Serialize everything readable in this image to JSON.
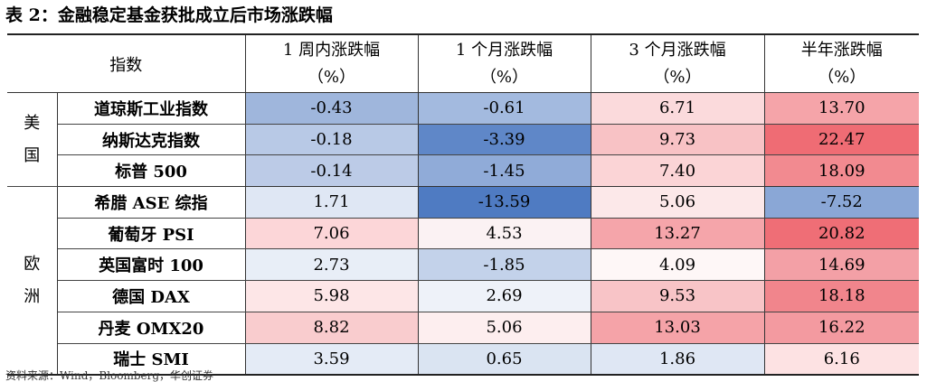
{
  "title": "表 2：金融稳定基金获批成立后市场涨跌幅",
  "header": {
    "index_label": "指数",
    "columns": [
      {
        "line1": "1 周内涨跌幅",
        "line2": "（%）"
      },
      {
        "line1": "1 个月涨跌幅",
        "line2": "（%）"
      },
      {
        "line1": "3 个月涨跌幅",
        "line2": "（%）"
      },
      {
        "line1": "半年涨跌幅",
        "line2": "（%）"
      }
    ]
  },
  "groups": [
    {
      "region": "美国",
      "rows": [
        {
          "name": "道琼斯工业指数",
          "values": [
            "-0.43",
            "-0.61",
            "6.71",
            "13.70"
          ],
          "colors": [
            "#9fb6dc",
            "#a3badf",
            "#fbdadc",
            "#f5a4a9"
          ]
        },
        {
          "name": "纳斯达克指数",
          "values": [
            "-0.18",
            "-3.39",
            "9.73",
            "22.47"
          ],
          "colors": [
            "#b8c9e6",
            "#5f87c8",
            "#f8c2c5",
            "#ef6c74"
          ]
        },
        {
          "name": "标普 500",
          "values": [
            "-0.14",
            "-1.45",
            "7.40",
            "18.09"
          ],
          "colors": [
            "#bccbe7",
            "#90abd8",
            "#fbd4d6",
            "#f28a90"
          ]
        }
      ]
    },
    {
      "region": "欧洲",
      "rows": [
        {
          "name": "希腊 ASE 综指",
          "values": [
            "1.71",
            "-13.59",
            "5.06",
            "-7.52"
          ],
          "colors": [
            "#dfe7f4",
            "#4f7bc2",
            "#fce8e9",
            "#8aa7d6"
          ]
        },
        {
          "name": "葡萄牙 PSI",
          "values": [
            "7.06",
            "4.53",
            "13.27",
            "20.82"
          ],
          "colors": [
            "#fcd6d8",
            "#fbf2f3",
            "#f5a5aa",
            "#ef6e76"
          ]
        },
        {
          "name": "英国富时 100",
          "values": [
            "2.73",
            "-1.85",
            "4.09",
            "14.69"
          ],
          "colors": [
            "#e8eef7",
            "#c3d2ea",
            "#fef7f7",
            "#f3a0a6"
          ]
        },
        {
          "name": "德国 DAX",
          "values": [
            "5.98",
            "2.69",
            "9.53",
            "18.18"
          ],
          "colors": [
            "#fde6e7",
            "#eef2f9",
            "#f8c4c7",
            "#f1858c"
          ]
        },
        {
          "name": "丹麦 OMX20",
          "values": [
            "8.82",
            "5.06",
            "13.03",
            "16.22"
          ],
          "colors": [
            "#f9ccce",
            "#fdeeef",
            "#f5a3a8",
            "#f39aa0"
          ]
        },
        {
          "name": "瑞士 SMI",
          "values": [
            "3.59",
            "0.65",
            "1.86",
            "6.16"
          ],
          "colors": [
            "#e4ebf6",
            "#dae4f2",
            "#dfe7f4",
            "#fde2e3"
          ]
        }
      ]
    }
  ],
  "source": "资料来源：Wind，Bloomberg，华创证券"
}
